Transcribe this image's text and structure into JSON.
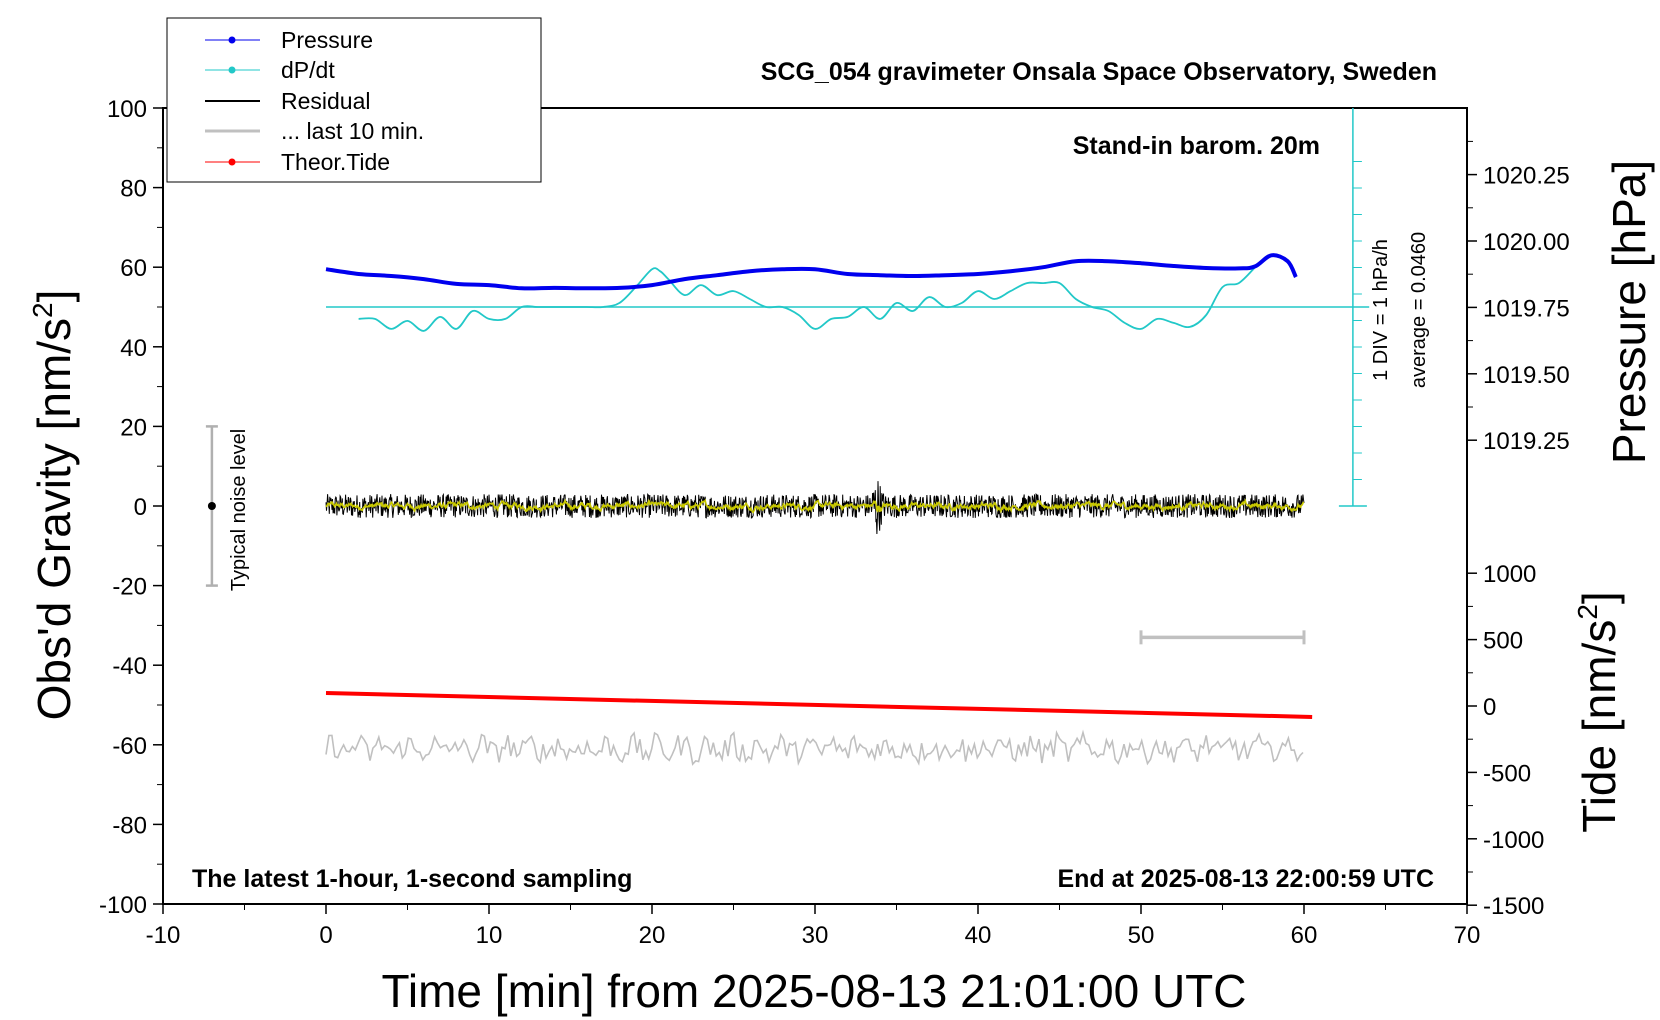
{
  "chart_data": {
    "type": "line",
    "title": "SCG_054 gravimeter Onsala Space Observatory, Sweden",
    "subtitle_top_right": "Stand-in barom. 20m",
    "bottom_left_note": "The latest 1-hour, 1-second sampling",
    "bottom_right_note": "End at 2025-08-13 22:00:59 UTC",
    "xlabel": "Time [min] from 2025-08-13 21:01:00 UTC",
    "xlim": [
      -10,
      70
    ],
    "xticks": [
      "-10",
      "0",
      "10",
      "20",
      "30",
      "40",
      "50",
      "60",
      "70"
    ],
    "ylabel_left": "Obs'd Gravity [nm/s",
    "ylabel_left_sup": "2",
    "ylabel_left_close": "]",
    "ylim_left": [
      -100,
      100
    ],
    "yticks_left": [
      "100",
      "80",
      "60",
      "40",
      "20",
      "0",
      "-20",
      "-40",
      "-60",
      "-80",
      "-100"
    ],
    "ylabel_right_pressure": "Pressure [hPa]",
    "yticks_pressure": [
      "1020.25",
      "1020.00",
      "1019.75",
      "1019.50",
      "1019.25"
    ],
    "pressure_axis_values": [
      1020.25,
      1020.0,
      1019.75,
      1019.5,
      1019.25
    ],
    "ylabel_right_tide": "Tide [nm/s",
    "ylabel_right_tide_sup": "2",
    "ylabel_right_tide_close": "]",
    "yticks_tide": [
      "1000",
      "500",
      "0",
      "-500",
      "-1000",
      "-1500"
    ],
    "tide_axis_values": [
      1000,
      500,
      0,
      -500,
      -1000,
      -1500
    ],
    "legend": [
      "Pressure",
      "dP/dt",
      "Residual",
      "... last 10 min.",
      "Theor.Tide"
    ],
    "legend_position": "top-left",
    "colors": {
      "pressure": "#0000ee",
      "dpdt": "#22c8c8",
      "residual": "#000000",
      "residual_smooth": "#c8c800",
      "last10": "#c0c0c0",
      "tide": "#ff0000"
    },
    "noise_bar": {
      "label": "Typical noise level",
      "center": 0,
      "range": [
        -20,
        20
      ],
      "x": -7
    },
    "dpdt_scale_label": "1 DIV = 1 hPa/h",
    "dpdt_average_label": "average = 0.0460",
    "dpdt_baseline_y": 50,
    "series": [
      {
        "name": "Pressure",
        "unit": "hPa (plotted in gravity-axis units)",
        "x": [
          0,
          2,
          4,
          6,
          8,
          10,
          12,
          14,
          16,
          18,
          20,
          22,
          24,
          26,
          28,
          30,
          32,
          34,
          36,
          38,
          40,
          42,
          44,
          46,
          48,
          50,
          52,
          54,
          56,
          57,
          58,
          59,
          59.5
        ],
        "y": [
          59.5,
          58.3,
          57.8,
          57.0,
          55.8,
          55.5,
          54.7,
          54.8,
          54.7,
          54.8,
          55.5,
          57.0,
          58.0,
          59.0,
          59.5,
          59.5,
          58.3,
          58.0,
          57.8,
          58.0,
          58.3,
          59.0,
          60.0,
          61.5,
          61.5,
          61.0,
          60.3,
          59.8,
          59.7,
          60.2,
          63.0,
          61.5,
          57.5
        ]
      },
      {
        "name": "dP/dt",
        "x": [
          2,
          3,
          4,
          5,
          6,
          7,
          8,
          9,
          10,
          11,
          12,
          13,
          14,
          15,
          16,
          17,
          18,
          19,
          20,
          20.5,
          21,
          22,
          23,
          24,
          25,
          26,
          27,
          28,
          29,
          30,
          31,
          32,
          33,
          34,
          35,
          36,
          37,
          38,
          39,
          40,
          41,
          42,
          43,
          44,
          45,
          46,
          47,
          48,
          49,
          50,
          51,
          52,
          53,
          54,
          55,
          56,
          57
        ],
        "y": [
          47,
          47,
          44.5,
          46.5,
          44,
          47.5,
          44.5,
          49,
          47,
          47,
          50,
          50,
          50,
          50,
          50,
          50,
          51,
          55,
          59.5,
          59,
          57,
          53,
          55.5,
          53,
          54,
          52,
          50,
          50,
          48,
          44.5,
          47,
          47.5,
          50,
          47,
          51,
          49,
          52.5,
          50,
          51,
          54,
          52,
          54,
          56,
          56,
          56,
          52,
          50,
          49,
          46,
          44.5,
          47,
          46,
          45,
          48,
          55,
          56,
          60
        ]
      },
      {
        "name": "Residual",
        "x_range": [
          0,
          60
        ],
        "typical_amplitude": 3,
        "event": {
          "x": 33.8,
          "peak": 10,
          "trough": -10.5
        }
      },
      {
        "name": "... last 10 min.",
        "x_range": [
          0,
          60
        ],
        "center": -61,
        "typical_amplitude": 3,
        "bracket": {
          "x": [
            50,
            60
          ],
          "y": -33
        }
      },
      {
        "name": "Theor.Tide",
        "unit": "nm/s2",
        "x": [
          0,
          60.5
        ],
        "tide_values": [
          90,
          -90
        ],
        "y_plotted": [
          -47,
          -53
        ]
      }
    ]
  }
}
